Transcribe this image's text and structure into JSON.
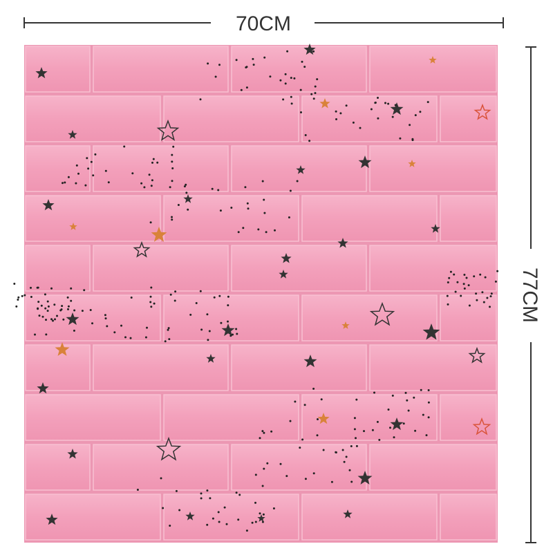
{
  "dimensions": {
    "width_label": "70CM",
    "height_label": "77CM"
  }
}
